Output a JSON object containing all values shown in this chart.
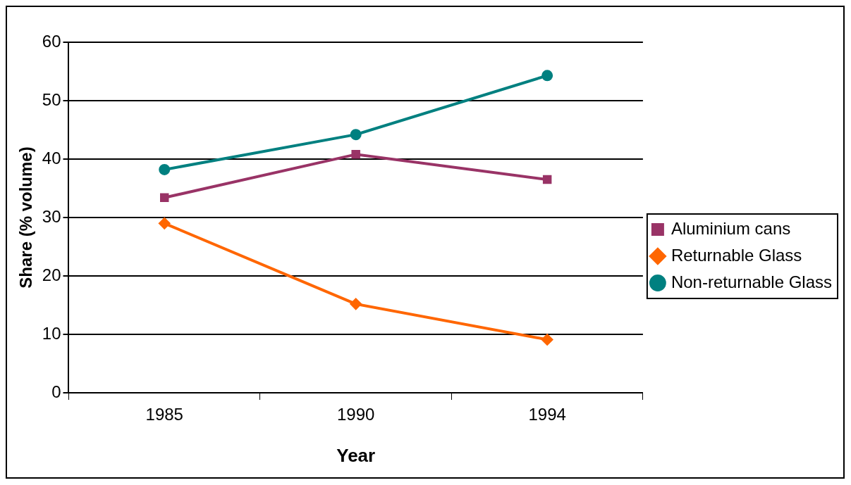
{
  "chart_data": {
    "type": "line",
    "xlabel": "Year",
    "ylabel": "Share (% volume)",
    "categories": [
      "1985",
      "1990",
      "1994"
    ],
    "series": [
      {
        "name": "Aluminium cans",
        "color": "#993366",
        "marker": "square",
        "values": [
          33.4,
          40.8,
          36.5
        ]
      },
      {
        "name": "Returnable Glass",
        "color": "#ff6600",
        "marker": "diamond",
        "values": [
          29,
          15.2,
          9.1
        ]
      },
      {
        "name": "Non-returnable Glass",
        "color": "#008080",
        "marker": "circle",
        "values": [
          38.2,
          44.2,
          54.3
        ]
      }
    ],
    "ylim": [
      0,
      60
    ],
    "yticks": [
      0,
      10,
      20,
      30,
      40,
      50,
      60
    ],
    "grid": "y",
    "legend": "right",
    "line_style": "solid"
  }
}
